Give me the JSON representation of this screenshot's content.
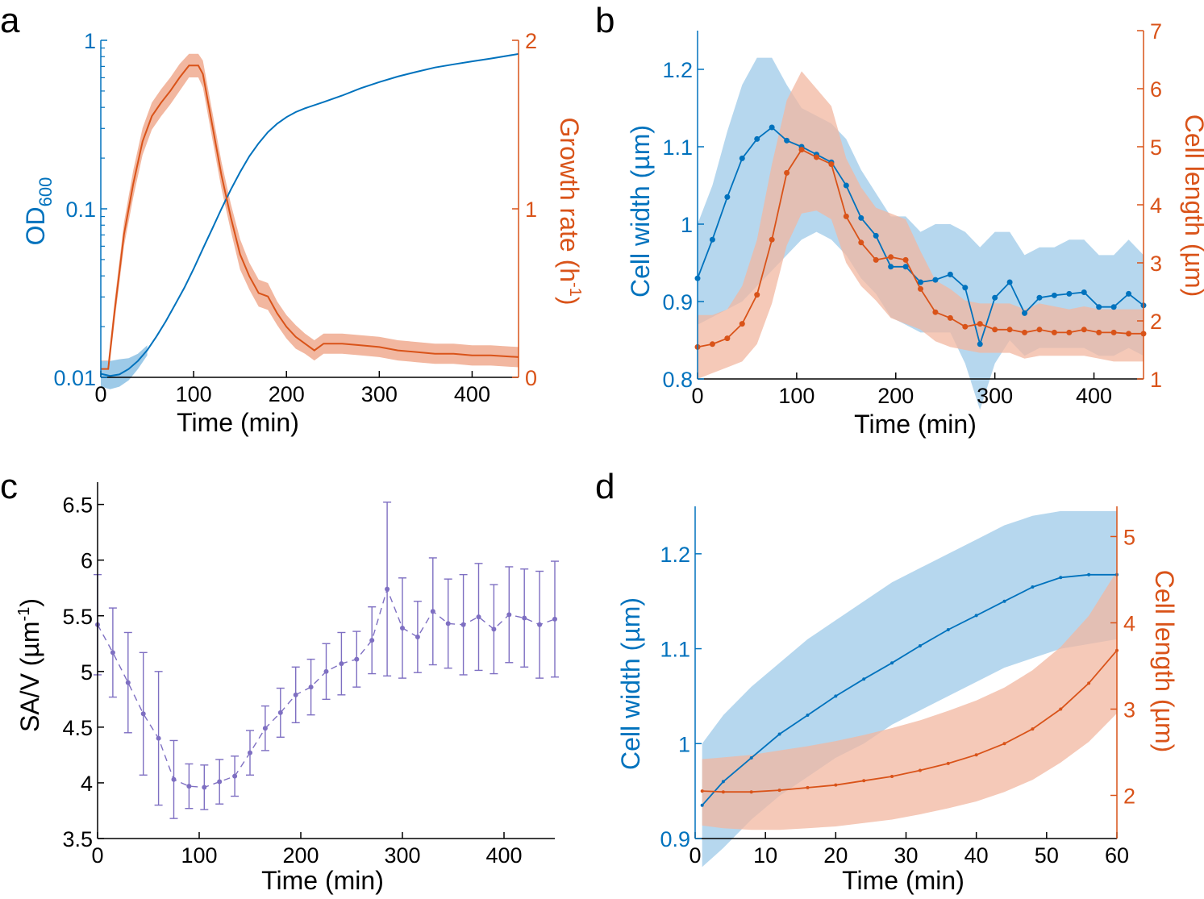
{
  "colors": {
    "blue": "#0072BD",
    "orange": "#D95319",
    "blue_band": "#9DCAE8",
    "orange_band": "#F2B7A0",
    "purple": "#7E6FC2",
    "black": "#000000"
  },
  "panels": {
    "a": {
      "letter": "a",
      "xlabel": "Time (min)",
      "ylabel_left": "OD",
      "ylabel_left_sub": "600",
      "ylabel_right": "Growth rate (h",
      "ylabel_right_sup": "-1",
      "ylabel_right_end": ")"
    },
    "b": {
      "letter": "b",
      "xlabel": "Time (min)",
      "ylabel_left": "Cell width (µm)",
      "ylabel_right": "Cell length (µm)"
    },
    "c": {
      "letter": "c",
      "xlabel": "Time (min)",
      "ylabel": "SA/V (µm",
      "ylabel_sup": "-1",
      "ylabel_end": ")"
    },
    "d": {
      "letter": "d",
      "xlabel": "Time (min)",
      "ylabel_left": "Cell width (µm)",
      "ylabel_right": "Cell length (µm)"
    }
  },
  "chart_data": [
    {
      "panel": "a",
      "type": "line",
      "xlabel": "Time (min)",
      "xlim": [
        0,
        450
      ],
      "xticks": [
        0,
        100,
        200,
        300,
        400
      ],
      "ylabel": "OD600",
      "yscale": "log",
      "ylim": [
        0.01,
        1
      ],
      "yticks": [
        0.01,
        0.1,
        1
      ],
      "ytick_labels": [
        "0.01",
        "0.1",
        "1"
      ],
      "y2label": "Growth rate (h-1)",
      "y2lim": [
        0,
        2
      ],
      "y2ticks": [
        0,
        1,
        2
      ],
      "series": [
        {
          "name": "OD600",
          "axis": "left",
          "color": "blue",
          "x": [
            0,
            10,
            20,
            30,
            40,
            50,
            60,
            70,
            80,
            90,
            100,
            110,
            120,
            130,
            140,
            150,
            160,
            170,
            180,
            190,
            200,
            210,
            220,
            240,
            260,
            280,
            300,
            320,
            340,
            360,
            380,
            400,
            420,
            450
          ],
          "y": [
            0.0105,
            0.0102,
            0.0104,
            0.0112,
            0.0125,
            0.0145,
            0.0175,
            0.0215,
            0.027,
            0.034,
            0.044,
            0.058,
            0.076,
            0.1,
            0.13,
            0.165,
            0.205,
            0.245,
            0.285,
            0.32,
            0.35,
            0.375,
            0.395,
            0.43,
            0.47,
            0.52,
            0.565,
            0.61,
            0.65,
            0.69,
            0.72,
            0.75,
            0.78,
            0.83
          ],
          "band_lo": [
            0.0088,
            0.0085,
            0.0088,
            0.0096,
            0.0112,
            0.0135
          ],
          "band_hi": [
            0.0125,
            0.0125,
            0.0128,
            0.013,
            0.0138,
            0.0155
          ]
        },
        {
          "name": "Growth rate",
          "axis": "right",
          "color": "orange",
          "x": [
            0,
            8,
            15,
            25,
            35,
            45,
            55,
            65,
            75,
            85,
            95,
            105,
            110,
            120,
            130,
            140,
            150,
            160,
            170,
            180,
            190,
            200,
            210,
            220,
            230,
            240,
            260,
            280,
            300,
            320,
            340,
            360,
            380,
            400,
            420,
            450
          ],
          "y": [
            0.05,
            0.05,
            0.4,
            0.85,
            1.15,
            1.4,
            1.55,
            1.63,
            1.7,
            1.78,
            1.85,
            1.85,
            1.8,
            1.5,
            1.2,
            0.95,
            0.73,
            0.6,
            0.5,
            0.48,
            0.38,
            0.3,
            0.24,
            0.2,
            0.16,
            0.2,
            0.2,
            0.19,
            0.18,
            0.16,
            0.15,
            0.14,
            0.14,
            0.13,
            0.13,
            0.12
          ],
          "band_lo": [
            0.0,
            0.0,
            0.34,
            0.78,
            1.07,
            1.32,
            1.47,
            1.55,
            1.62,
            1.7,
            1.78,
            1.78,
            1.72,
            1.42,
            1.12,
            0.87,
            0.64,
            0.52,
            0.42,
            0.4,
            0.31,
            0.23,
            0.17,
            0.14,
            0.1,
            0.14,
            0.14,
            0.13,
            0.12,
            0.1,
            0.09,
            0.08,
            0.08,
            0.07,
            0.07,
            0.06
          ],
          "band_hi": [
            0.1,
            0.1,
            0.46,
            0.92,
            1.23,
            1.48,
            1.63,
            1.71,
            1.78,
            1.86,
            1.92,
            1.92,
            1.88,
            1.58,
            1.28,
            1.03,
            0.82,
            0.68,
            0.58,
            0.56,
            0.45,
            0.37,
            0.31,
            0.26,
            0.22,
            0.26,
            0.26,
            0.25,
            0.24,
            0.22,
            0.21,
            0.2,
            0.2,
            0.19,
            0.19,
            0.18
          ]
        }
      ]
    },
    {
      "panel": "b",
      "type": "line",
      "xlabel": "Time (min)",
      "xlim": [
        0,
        450
      ],
      "xticks": [
        0,
        100,
        200,
        300,
        400
      ],
      "ylabel": "Cell width (µm)",
      "ylim": [
        0.8,
        1.25
      ],
      "yticks": [
        0.8,
        0.9,
        1,
        1.1,
        1.2
      ],
      "ytick_labels": [
        "0.8",
        "0.9",
        "1",
        "1.1",
        "1.2"
      ],
      "y2label": "Cell length (µm)",
      "y2lim": [
        1,
        7
      ],
      "y2ticks": [
        1,
        2,
        3,
        4,
        5,
        6,
        7
      ],
      "series": [
        {
          "name": "Cell width",
          "axis": "left",
          "color": "blue",
          "x": [
            0,
            15,
            30,
            45,
            60,
            75,
            90,
            105,
            120,
            135,
            150,
            165,
            180,
            195,
            210,
            225,
            240,
            255,
            270,
            285,
            300,
            315,
            330,
            345,
            360,
            375,
            390,
            405,
            420,
            435,
            450
          ],
          "y": [
            0.93,
            0.98,
            1.035,
            1.085,
            1.11,
            1.125,
            1.108,
            1.1,
            1.09,
            1.08,
            1.05,
            1.008,
            0.985,
            0.945,
            0.945,
            0.925,
            0.928,
            0.935,
            0.918,
            0.845,
            0.905,
            0.925,
            0.885,
            0.905,
            0.908,
            0.91,
            0.912,
            0.893,
            0.893,
            0.91,
            0.895
          ],
          "band_lo": [
            0.87,
            0.88,
            0.89,
            0.9,
            0.92,
            0.94,
            0.96,
            0.98,
            0.99,
            0.98,
            0.96,
            0.93,
            0.91,
            0.88,
            0.87,
            0.86,
            0.86,
            0.86,
            0.82,
            0.76,
            0.82,
            0.85,
            0.83,
            0.84,
            0.84,
            0.84,
            0.84,
            0.83,
            0.83,
            0.84,
            0.83
          ],
          "band_hi": [
            1.0,
            1.05,
            1.12,
            1.18,
            1.215,
            1.215,
            1.18,
            1.15,
            1.14,
            1.13,
            1.11,
            1.07,
            1.04,
            1.01,
            1.01,
            0.99,
            1.0,
            1.0,
            0.99,
            0.97,
            0.99,
            0.99,
            0.96,
            0.97,
            0.97,
            0.98,
            0.98,
            0.96,
            0.96,
            0.98,
            0.96
          ]
        },
        {
          "name": "Cell length",
          "axis": "right",
          "color": "orange",
          "x": [
            0,
            15,
            30,
            45,
            60,
            75,
            90,
            105,
            120,
            135,
            150,
            165,
            180,
            195,
            210,
            225,
            240,
            255,
            270,
            285,
            300,
            315,
            330,
            345,
            360,
            375,
            390,
            405,
            420,
            435,
            450
          ],
          "y": [
            1.55,
            1.6,
            1.7,
            1.95,
            2.45,
            3.4,
            4.55,
            4.95,
            4.82,
            4.7,
            3.8,
            3.35,
            3.05,
            3.1,
            3.05,
            2.55,
            2.15,
            2.05,
            1.9,
            1.95,
            1.85,
            1.85,
            1.8,
            1.85,
            1.8,
            1.8,
            1.85,
            1.8,
            1.8,
            1.78,
            1.78
          ],
          "band_lo": [
            1.0,
            1.1,
            1.2,
            1.3,
            1.6,
            2.3,
            3.3,
            3.85,
            3.9,
            3.75,
            3.0,
            2.6,
            2.35,
            2.05,
            1.95,
            1.85,
            1.65,
            1.55,
            1.5,
            1.45,
            1.45,
            1.45,
            1.35,
            1.4,
            1.4,
            1.4,
            1.4,
            1.35,
            1.3,
            1.3,
            1.3
          ],
          "band_hi": [
            2.1,
            2.1,
            2.2,
            2.6,
            3.4,
            4.7,
            5.8,
            6.3,
            6.0,
            5.7,
            4.8,
            4.3,
            3.95,
            3.85,
            3.75,
            3.2,
            2.7,
            2.55,
            2.35,
            2.3,
            2.3,
            2.3,
            2.2,
            2.3,
            2.25,
            2.2,
            2.25,
            2.2,
            2.2,
            2.2,
            2.2
          ]
        }
      ]
    },
    {
      "panel": "c",
      "type": "scatter",
      "xlabel": "Time (min)",
      "xlim": [
        0,
        450
      ],
      "xticks": [
        0,
        100,
        200,
        300,
        400
      ],
      "ylabel": "SA/V (µm-1)",
      "ylim": [
        3.5,
        6.7
      ],
      "yticks": [
        3.5,
        4,
        4.5,
        5,
        5.5,
        6,
        6.5
      ],
      "ytick_labels": [
        "3.5",
        "4",
        "4.5",
        "5",
        "5.5",
        "6",
        "6.5"
      ],
      "series": [
        {
          "name": "SA/V",
          "color": "purple",
          "x": [
            0,
            15,
            30,
            45,
            60,
            75,
            90,
            105,
            120,
            135,
            150,
            165,
            180,
            195,
            210,
            225,
            240,
            255,
            270,
            285,
            300,
            315,
            330,
            345,
            360,
            375,
            390,
            405,
            420,
            435,
            450
          ],
          "y": [
            5.42,
            5.17,
            4.9,
            4.62,
            4.4,
            4.03,
            3.97,
            3.96,
            4.01,
            4.06,
            4.27,
            4.49,
            4.63,
            4.79,
            4.86,
            5.0,
            5.07,
            5.11,
            5.28,
            5.74,
            5.39,
            5.31,
            5.54,
            5.43,
            5.42,
            5.49,
            5.38,
            5.51,
            5.48,
            5.42,
            5.47
          ],
          "err": [
            0.45,
            0.4,
            0.45,
            0.55,
            0.6,
            0.35,
            0.2,
            0.2,
            0.2,
            0.18,
            0.2,
            0.2,
            0.22,
            0.25,
            0.25,
            0.25,
            0.28,
            0.25,
            0.3,
            0.78,
            0.45,
            0.32,
            0.48,
            0.4,
            0.45,
            0.48,
            0.4,
            0.43,
            0.44,
            0.48,
            0.52
          ]
        }
      ]
    },
    {
      "panel": "d",
      "type": "line",
      "xlabel": "Time (min)",
      "xlim": [
        0,
        60
      ],
      "xticks": [
        0,
        10,
        20,
        30,
        40,
        50,
        60
      ],
      "ylabel": "Cell width (µm)",
      "ylim": [
        0.9,
        1.25
      ],
      "yticks": [
        0.9,
        1,
        1.1,
        1.2
      ],
      "ytick_labels": [
        "0.9",
        "1",
        "1.1",
        "1.2"
      ],
      "y2label": "Cell length (µm)",
      "y2lim": [
        1.5,
        5.35
      ],
      "y2ticks": [
        2,
        3,
        4,
        5
      ],
      "series": [
        {
          "name": "Cell width",
          "axis": "left",
          "color": "blue",
          "x": [
            1,
            4,
            8,
            12,
            16,
            20,
            24,
            28,
            32,
            36,
            40,
            44,
            48,
            52,
            56,
            60
          ],
          "y": [
            0.935,
            0.96,
            0.985,
            1.01,
            1.03,
            1.05,
            1.068,
            1.085,
            1.103,
            1.12,
            1.135,
            1.15,
            1.165,
            1.175,
            1.178,
            1.178
          ],
          "band_lo": [
            0.87,
            0.89,
            0.92,
            0.945,
            0.965,
            0.985,
            1.0,
            1.02,
            1.035,
            1.05,
            1.065,
            1.08,
            1.09,
            1.1,
            1.105,
            1.11
          ],
          "band_hi": [
            1.0,
            1.03,
            1.06,
            1.085,
            1.11,
            1.13,
            1.15,
            1.17,
            1.185,
            1.2,
            1.215,
            1.23,
            1.24,
            1.245,
            1.245,
            1.245
          ]
        },
        {
          "name": "Cell length",
          "axis": "right",
          "color": "orange",
          "x": [
            1,
            4,
            8,
            12,
            16,
            20,
            24,
            28,
            32,
            36,
            40,
            44,
            48,
            52,
            56,
            60
          ],
          "y": [
            2.05,
            2.04,
            2.04,
            2.06,
            2.09,
            2.12,
            2.17,
            2.22,
            2.29,
            2.37,
            2.47,
            2.6,
            2.77,
            3.0,
            3.3,
            3.68
          ],
          "band_lo": [
            1.65,
            1.62,
            1.6,
            1.6,
            1.62,
            1.64,
            1.68,
            1.72,
            1.78,
            1.85,
            1.93,
            2.04,
            2.18,
            2.38,
            2.62,
            2.95
          ],
          "band_hi": [
            2.42,
            2.44,
            2.47,
            2.52,
            2.57,
            2.63,
            2.7,
            2.78,
            2.87,
            2.98,
            3.1,
            3.25,
            3.45,
            3.72,
            4.08,
            4.6
          ]
        }
      ]
    }
  ]
}
